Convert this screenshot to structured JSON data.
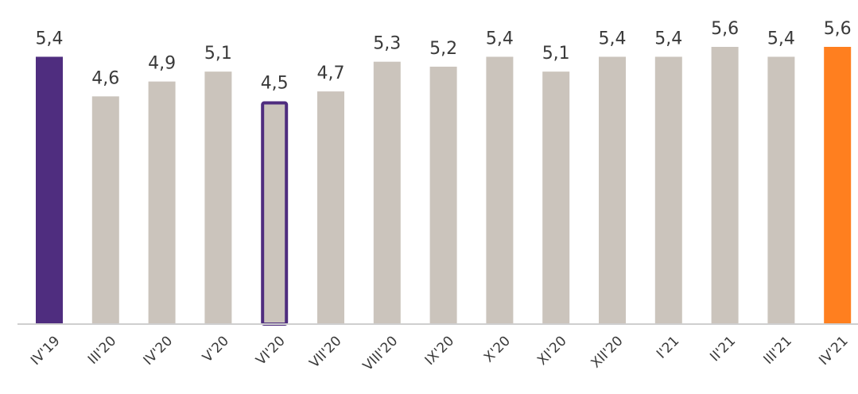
{
  "chart_data": {
    "type": "bar",
    "categories": [
      "IV'19",
      "III'20",
      "IV'20",
      "V'20",
      "VI'20",
      "VII'20",
      "VIII'20",
      "IX'20",
      "X'20",
      "XI'20",
      "XII'20",
      "I'21",
      "II'21",
      "III'21",
      "IV'21"
    ],
    "values": [
      5.4,
      4.6,
      4.9,
      5.1,
      4.5,
      4.7,
      5.3,
      5.2,
      5.4,
      5.1,
      5.4,
      5.4,
      5.6,
      5.4,
      5.6
    ],
    "value_labels": [
      "5,4",
      "4,6",
      "4,9",
      "5,1",
      "4,5",
      "4,7",
      "5,3",
      "5,2",
      "5,4",
      "5,1",
      "5,4",
      "5,4",
      "5,6",
      "5,4",
      "5,6"
    ],
    "title": "",
    "xlabel": "",
    "ylabel": "",
    "ylim": [
      0,
      5.6
    ],
    "grid": false,
    "legend": "none",
    "colors": {
      "default": "#cbc4bc",
      "first": "#4f2d7f",
      "last": "#ff7f1f",
      "outline": "#4f2d7f",
      "axis": "#cfcfcf"
    },
    "highlight": {
      "filled_purple_index": 0,
      "outlined_index": 4,
      "orange_index": 14
    }
  }
}
